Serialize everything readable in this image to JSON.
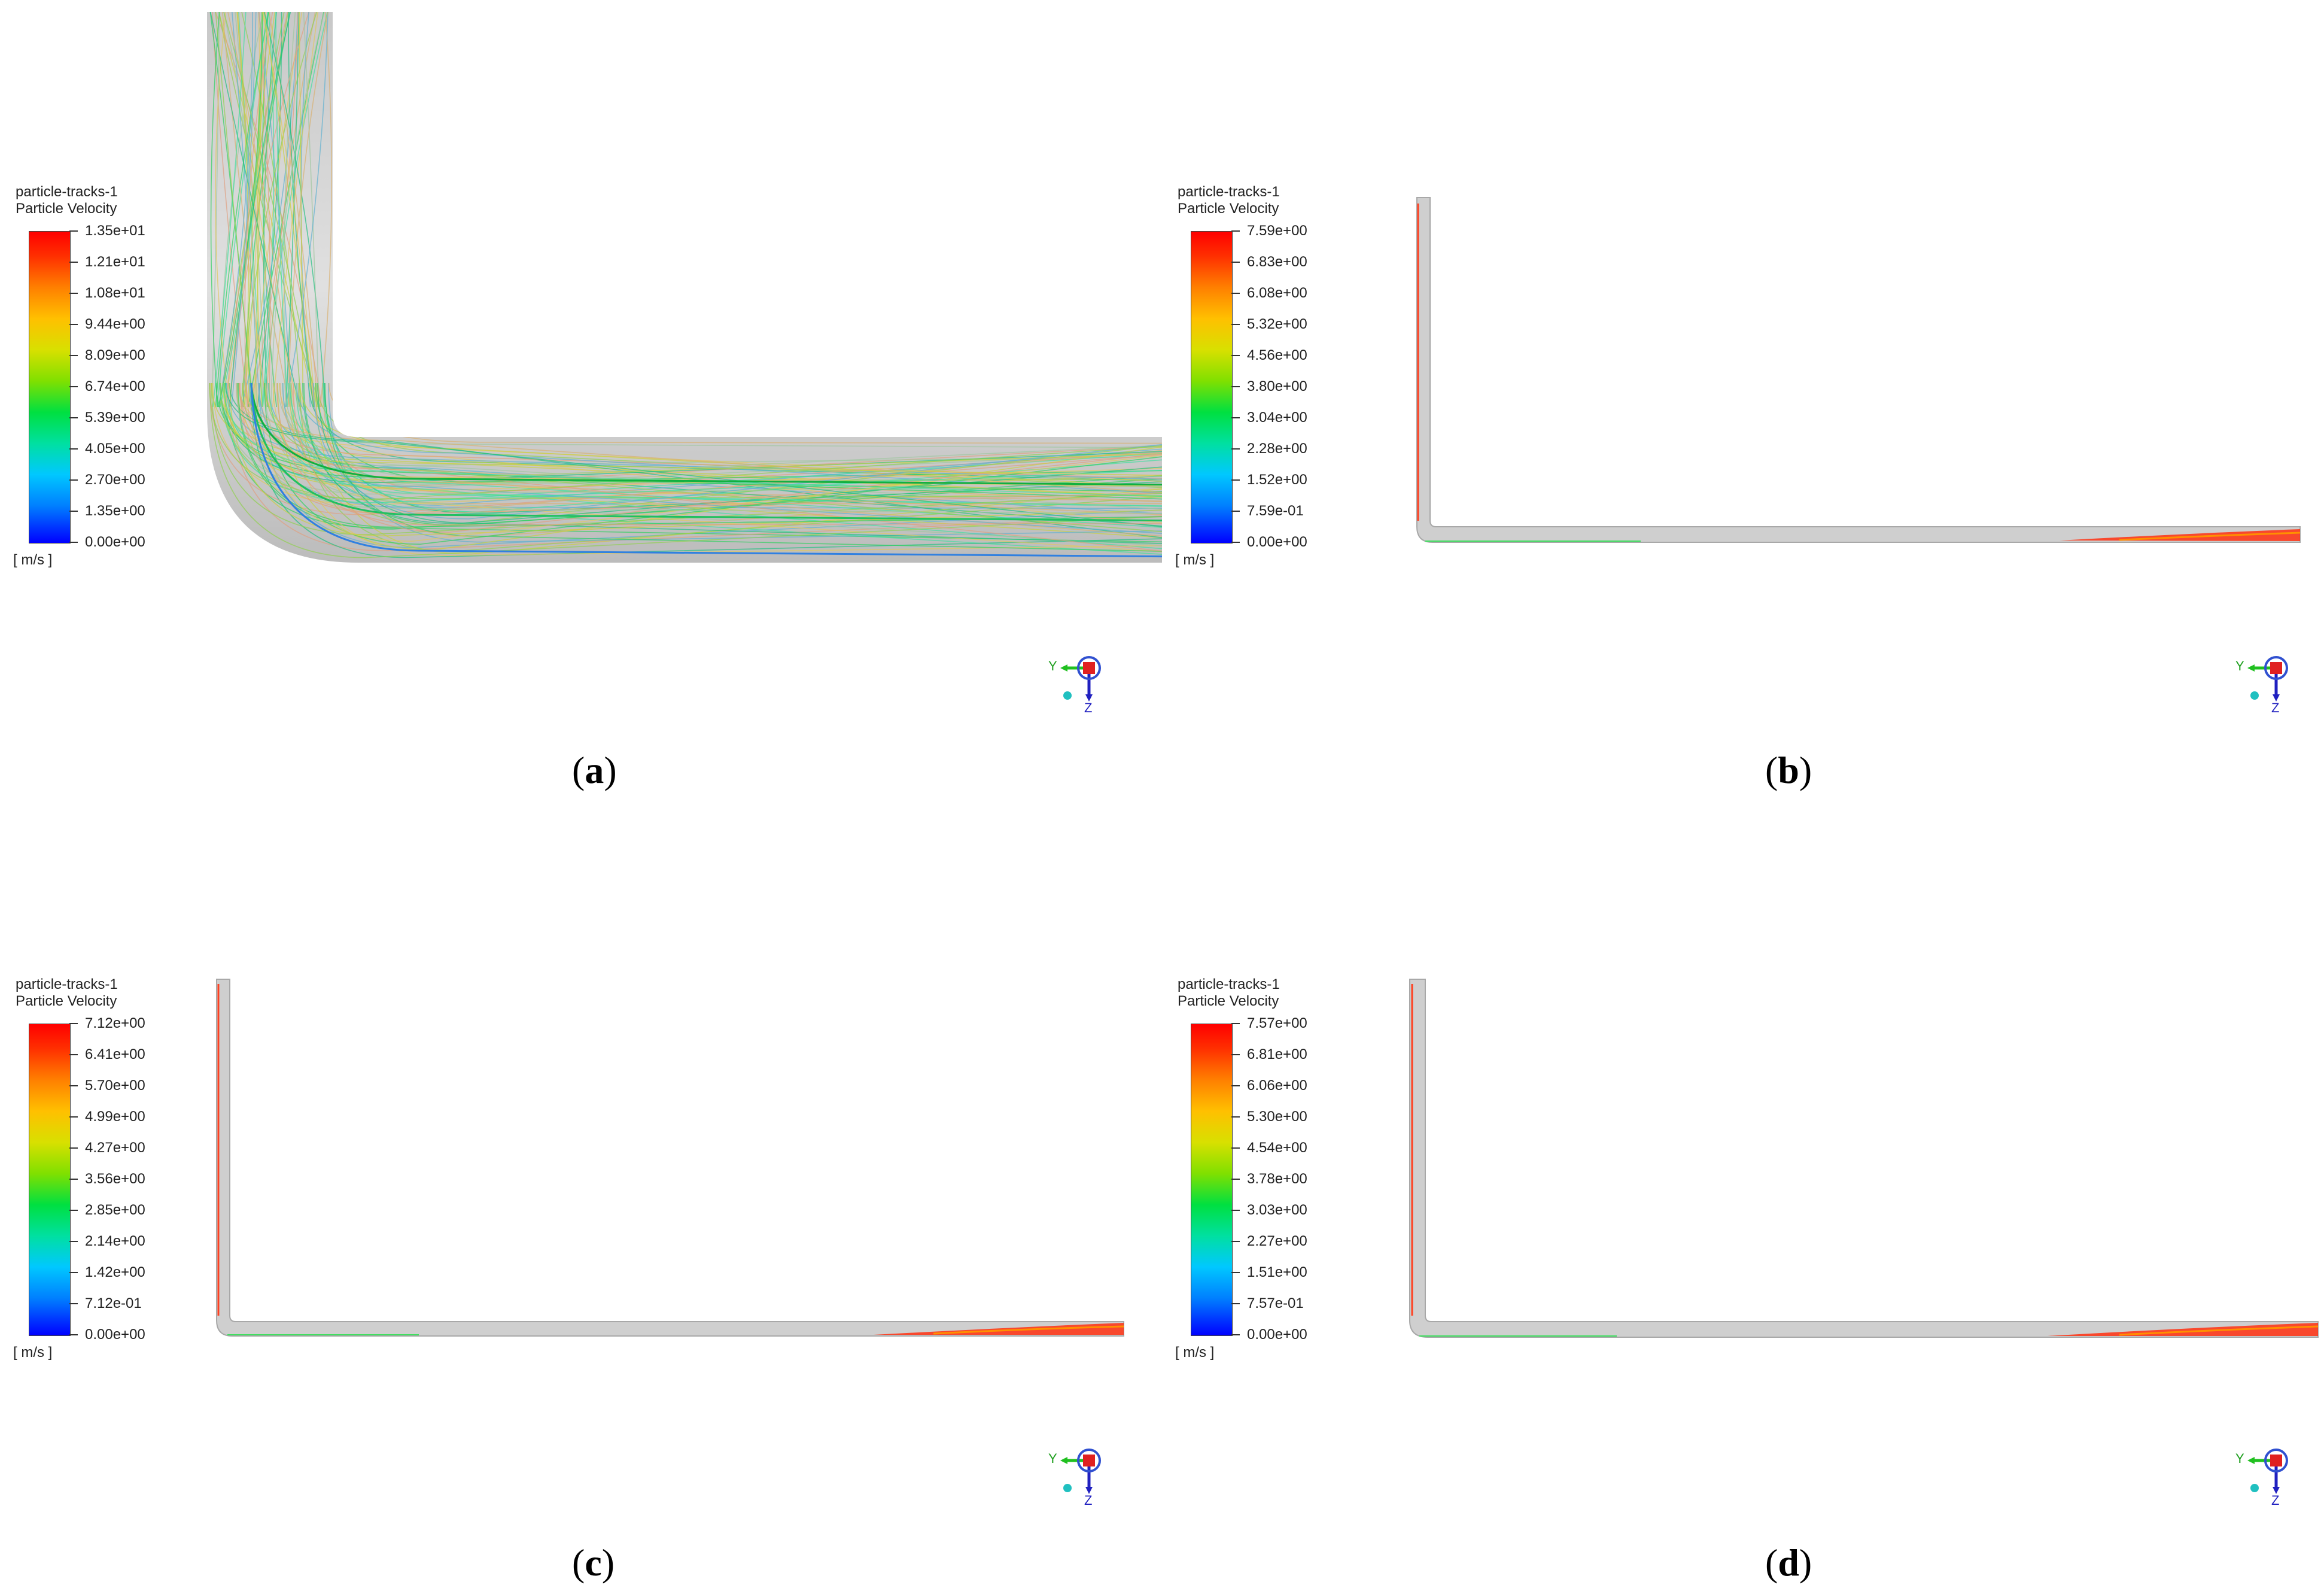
{
  "colormap_colors": [
    "#0000ff",
    "#00c8ff",
    "#00e040",
    "#d8e000",
    "#ff8000",
    "#ff0000"
  ],
  "panels": [
    {
      "id": "a",
      "legend": {
        "title_line1": "particle-tracks-1",
        "title_line2": "Particle Velocity",
        "unit": "[ m/s ]",
        "ticks": [
          "1.35e+01",
          "1.21e+01",
          "1.08e+01",
          "9.44e+00",
          "8.09e+00",
          "6.74e+00",
          "5.39e+00",
          "4.05e+00",
          "2.70e+00",
          "1.35e+00",
          "0.00e+00"
        ]
      },
      "caption_open": "(",
      "caption_letter": "a",
      "caption_close": ")",
      "axis_labels": {
        "y": "Y",
        "z": "Z"
      }
    },
    {
      "id": "b",
      "legend": {
        "title_line1": "particle-tracks-1",
        "title_line2": "Particle Velocity",
        "unit": "[ m/s ]",
        "ticks": [
          "7.59e+00",
          "6.83e+00",
          "6.08e+00",
          "5.32e+00",
          "4.56e+00",
          "3.80e+00",
          "3.04e+00",
          "2.28e+00",
          "1.52e+00",
          "7.59e-01",
          "0.00e+00"
        ]
      },
      "caption_open": "(",
      "caption_letter": "b",
      "caption_close": ")",
      "axis_labels": {
        "y": "Y",
        "z": "Z"
      }
    },
    {
      "id": "c",
      "legend": {
        "title_line1": "particle-tracks-1",
        "title_line2": "Particle Velocity",
        "unit": "[ m/s ]",
        "ticks": [
          "7.12e+00",
          "6.41e+00",
          "5.70e+00",
          "4.99e+00",
          "4.27e+00",
          "3.56e+00",
          "2.85e+00",
          "2.14e+00",
          "1.42e+00",
          "7.12e-01",
          "0.00e+00"
        ]
      },
      "caption_open": "(",
      "caption_letter": "c",
      "caption_close": ")",
      "axis_labels": {
        "y": "Y",
        "z": "Z"
      }
    },
    {
      "id": "d",
      "legend": {
        "title_line1": "particle-tracks-1",
        "title_line2": "Particle Velocity",
        "unit": "[ m/s ]",
        "ticks": [
          "7.57e+00",
          "6.81e+00",
          "6.06e+00",
          "5.30e+00",
          "4.54e+00",
          "3.78e+00",
          "3.03e+00",
          "2.27e+00",
          "1.51e+00",
          "7.57e-01",
          "0.00e+00"
        ]
      },
      "caption_open": "(",
      "caption_letter": "d",
      "caption_close": ")",
      "axis_labels": {
        "y": "Y",
        "z": "Z"
      }
    }
  ]
}
